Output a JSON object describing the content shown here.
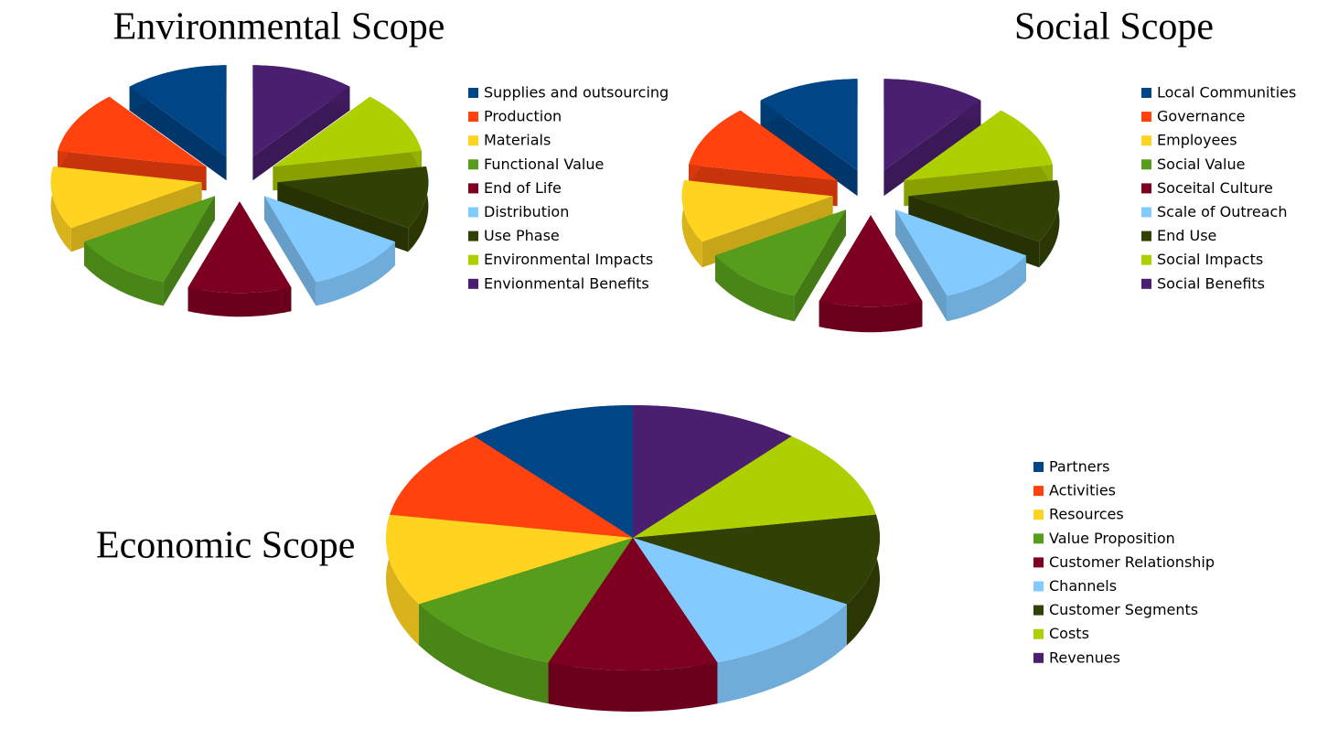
{
  "chart_data": [
    {
      "type": "pie",
      "title": "Environmental Scope",
      "exploded": true,
      "categories": [
        "Supplies and outsourcing",
        "Production",
        "Materials",
        "Functional Value",
        "End of Life",
        "Distribution",
        "Use Phase",
        "Environmental Impacts",
        "Envionmental Benefits"
      ],
      "values": [
        11.1,
        11.1,
        11.1,
        11.1,
        11.1,
        11.1,
        11.1,
        11.1,
        11.1
      ],
      "colors": [
        "#004586",
        "#ff420e",
        "#ffd320",
        "#579d1c",
        "#7e0021",
        "#83caff",
        "#314004",
        "#aecf00",
        "#4b1f6f"
      ]
    },
    {
      "type": "pie",
      "title": "Social Scope",
      "exploded": true,
      "categories": [
        "Local Communities",
        "Governance",
        "Employees",
        "Social Value",
        "Soceital Culture",
        "Scale of Outreach",
        "End Use",
        "Social Impacts",
        "Social Benefits"
      ],
      "values": [
        11.1,
        11.1,
        11.1,
        11.1,
        11.1,
        11.1,
        11.1,
        11.1,
        11.1
      ],
      "colors": [
        "#004586",
        "#ff420e",
        "#ffd320",
        "#579d1c",
        "#7e0021",
        "#83caff",
        "#314004",
        "#aecf00",
        "#4b1f6f"
      ]
    },
    {
      "type": "pie",
      "title": "Economic Scope",
      "exploded": false,
      "categories": [
        "Partners",
        "Activities",
        "Resources",
        "Value Proposition",
        "Customer Relationship",
        "Channels",
        "Customer Segments",
        "Costs",
        "Revenues"
      ],
      "values": [
        11.1,
        11.1,
        11.1,
        11.1,
        11.1,
        11.1,
        11.1,
        11.1,
        11.1
      ],
      "colors": [
        "#004586",
        "#ff420e",
        "#ffd320",
        "#579d1c",
        "#7e0021",
        "#83caff",
        "#314004",
        "#aecf00",
        "#4b1f6f"
      ]
    }
  ]
}
